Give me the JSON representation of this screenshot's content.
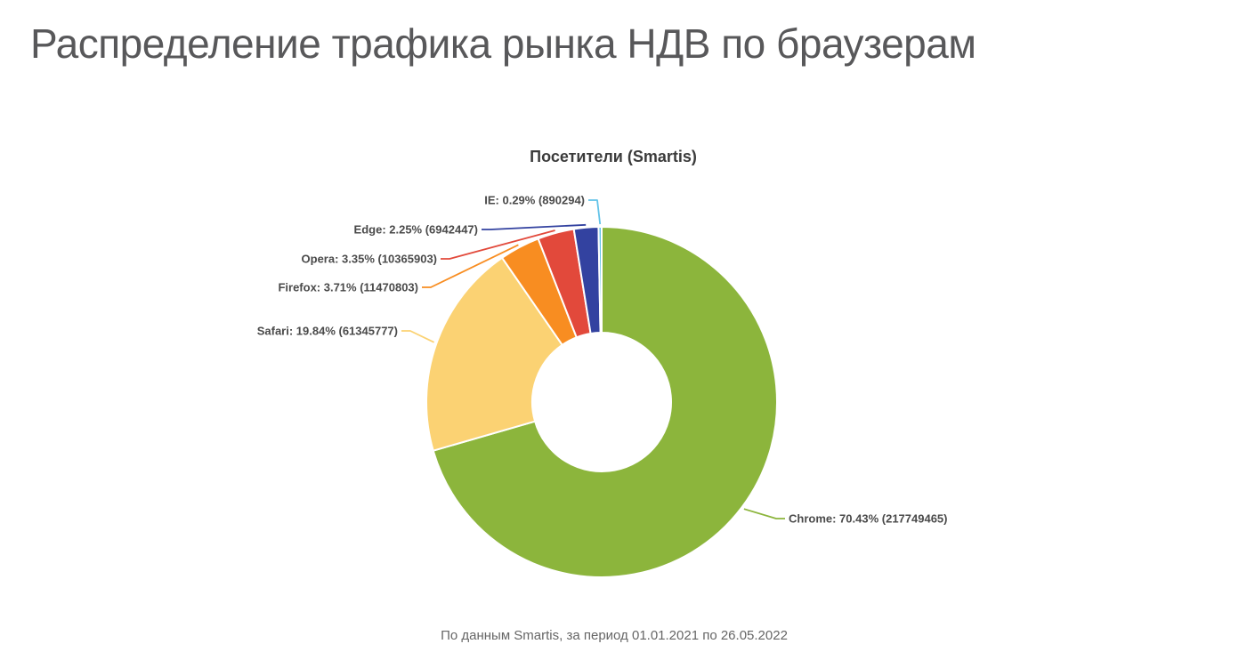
{
  "page": {
    "title": "Распределение трафика рынка НДВ по браузерам",
    "footer": "По данным Smartis, за период 01.01.2021 по 26.05.2022"
  },
  "chart_data": {
    "type": "pie",
    "subtype": "donut",
    "title": "Посетители (Smartis)",
    "label_format": "{name}: {percent}% ({value})",
    "slices": [
      {
        "name": "Chrome",
        "percent": 70.43,
        "value": 217749465,
        "color": "#8cb53c"
      },
      {
        "name": "Safari",
        "percent": 19.84,
        "value": 61345777,
        "color": "#fbd273"
      },
      {
        "name": "Firefox",
        "percent": 3.71,
        "value": 11470803,
        "color": "#f88d21"
      },
      {
        "name": "Opera",
        "percent": 3.35,
        "value": 10365903,
        "color": "#e2493b"
      },
      {
        "name": "Edge",
        "percent": 2.25,
        "value": 6942447,
        "color": "#3342a0"
      },
      {
        "name": "IE",
        "percent": 0.29,
        "value": 890294,
        "color": "#62c3e8"
      }
    ],
    "layout": {
      "legend": "none",
      "labels": "outside-with-connectors",
      "start_angle_deg": 0,
      "direction": "clockwise",
      "slice_border_color": "#ffffff"
    }
  }
}
